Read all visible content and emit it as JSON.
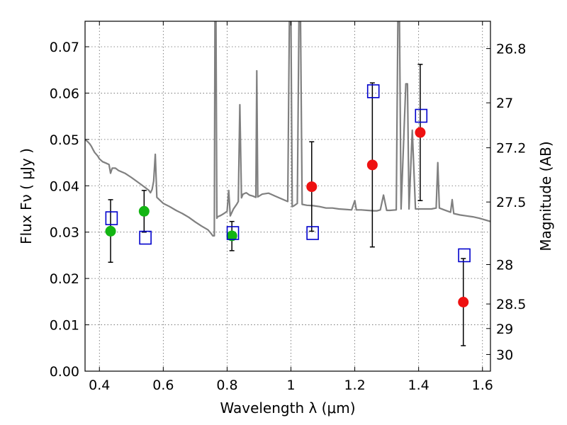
{
  "chart_data": {
    "type": "scatter",
    "title": "",
    "xlabel": "Wavelength  λ (μm)",
    "ylabel": "Flux  Fν  ( μJy )",
    "y2label": "Magnitude (AB)",
    "xlim": [
      0.355,
      1.625
    ],
    "ylim": [
      0.0,
      0.0755
    ],
    "grid": true,
    "x_ticks": [
      0.4,
      0.6,
      0.8,
      1.0,
      1.2,
      1.4,
      1.6
    ],
    "x_tick_labels": [
      "0.4",
      "0.6",
      "0.8",
      "1",
      "1.2",
      "1.4",
      "1.6"
    ],
    "y_ticks": [
      0.0,
      0.01,
      0.02,
      0.03,
      0.04,
      0.05,
      0.06,
      0.07
    ],
    "y_tick_labels": [
      "0.00",
      "0.01",
      "0.02",
      "0.03",
      "0.04",
      "0.05",
      "0.06",
      "0.07"
    ],
    "y2_ticks": [
      {
        "label": "26.8",
        "flux": 0.0696
      },
      {
        "label": "27",
        "flux": 0.0579
      },
      {
        "label": "27.2",
        "flux": 0.0482
      },
      {
        "label": "27.5",
        "flux": 0.0365
      },
      {
        "label": "28",
        "flux": 0.023
      },
      {
        "label": "28.5",
        "flux": 0.0145
      },
      {
        "label": "29",
        "flux": 0.0092
      },
      {
        "label": "30",
        "flux": 0.0036
      }
    ],
    "colors": {
      "model": "#808080",
      "green": "#13b513",
      "red": "#ee1111",
      "square": "#0000cc",
      "errorbar": "#000000"
    },
    "series": [
      {
        "kind": "line",
        "points": [
          [
            0.355,
            0.05
          ],
          [
            0.36,
            0.0497
          ],
          [
            0.365,
            0.0494
          ],
          [
            0.37,
            0.049
          ],
          [
            0.375,
            0.0485
          ],
          [
            0.38,
            0.0478
          ],
          [
            0.385,
            0.0472
          ],
          [
            0.39,
            0.0468
          ],
          [
            0.395,
            0.0464
          ],
          [
            0.4,
            0.0458
          ],
          [
            0.41,
            0.0452
          ],
          [
            0.42,
            0.0449
          ],
          [
            0.43,
            0.0446
          ],
          [
            0.435,
            0.0427
          ],
          [
            0.44,
            0.0438
          ],
          [
            0.45,
            0.0438
          ],
          [
            0.46,
            0.0433
          ],
          [
            0.48,
            0.0427
          ],
          [
            0.5,
            0.0418
          ],
          [
            0.52,
            0.0408
          ],
          [
            0.54,
            0.0398
          ],
          [
            0.555,
            0.039
          ],
          [
            0.56,
            0.0385
          ],
          [
            0.565,
            0.0392
          ],
          [
            0.57,
            0.041
          ],
          [
            0.575,
            0.0468
          ],
          [
            0.58,
            0.0375
          ],
          [
            0.6,
            0.0362
          ],
          [
            0.62,
            0.0355
          ],
          [
            0.64,
            0.0347
          ],
          [
            0.66,
            0.034
          ],
          [
            0.68,
            0.0332
          ],
          [
            0.7,
            0.0322
          ],
          [
            0.72,
            0.0313
          ],
          [
            0.74,
            0.0305
          ],
          [
            0.75,
            0.0297
          ],
          [
            0.755,
            0.0292
          ],
          [
            0.76,
            0.0292
          ],
          [
            0.762,
            0.076
          ],
          [
            0.765,
            0.076
          ],
          [
            0.768,
            0.033
          ],
          [
            0.77,
            0.0333
          ],
          [
            0.78,
            0.0336
          ],
          [
            0.79,
            0.034
          ],
          [
            0.8,
            0.0345
          ],
          [
            0.805,
            0.039
          ],
          [
            0.81,
            0.0335
          ],
          [
            0.82,
            0.035
          ],
          [
            0.83,
            0.036
          ],
          [
            0.835,
            0.0366
          ],
          [
            0.84,
            0.0575
          ],
          [
            0.845,
            0.0374
          ],
          [
            0.85,
            0.0382
          ],
          [
            0.86,
            0.0385
          ],
          [
            0.87,
            0.038
          ],
          [
            0.88,
            0.0378
          ],
          [
            0.89,
            0.0375
          ],
          [
            0.893,
            0.0648
          ],
          [
            0.896,
            0.0376
          ],
          [
            0.91,
            0.0382
          ],
          [
            0.93,
            0.0384
          ],
          [
            0.95,
            0.0378
          ],
          [
            0.97,
            0.0372
          ],
          [
            0.99,
            0.0366
          ],
          [
            0.995,
            0.076
          ],
          [
            1.0,
            0.076
          ],
          [
            1.004,
            0.0355
          ],
          [
            1.01,
            0.0357
          ],
          [
            1.02,
            0.0362
          ],
          [
            1.025,
            0.076
          ],
          [
            1.03,
            0.076
          ],
          [
            1.035,
            0.036
          ],
          [
            1.05,
            0.0358
          ],
          [
            1.07,
            0.0357
          ],
          [
            1.09,
            0.0355
          ],
          [
            1.11,
            0.0352
          ],
          [
            1.13,
            0.0352
          ],
          [
            1.15,
            0.035
          ],
          [
            1.17,
            0.0349
          ],
          [
            1.19,
            0.0348
          ],
          [
            1.2,
            0.0368
          ],
          [
            1.205,
            0.0348
          ],
          [
            1.22,
            0.0348
          ],
          [
            1.24,
            0.0347
          ],
          [
            1.26,
            0.0346
          ],
          [
            1.27,
            0.0346
          ],
          [
            1.28,
            0.0348
          ],
          [
            1.29,
            0.038
          ],
          [
            1.3,
            0.0347
          ],
          [
            1.31,
            0.0347
          ],
          [
            1.33,
            0.0348
          ],
          [
            1.335,
            0.076
          ],
          [
            1.34,
            0.076
          ],
          [
            1.345,
            0.035
          ],
          [
            1.36,
            0.062
          ],
          [
            1.365,
            0.062
          ],
          [
            1.37,
            0.035
          ],
          [
            1.38,
            0.052
          ],
          [
            1.39,
            0.035
          ],
          [
            1.4,
            0.035
          ],
          [
            1.42,
            0.035
          ],
          [
            1.44,
            0.035
          ],
          [
            1.455,
            0.0352
          ],
          [
            1.46,
            0.045
          ],
          [
            1.465,
            0.0352
          ],
          [
            1.48,
            0.0348
          ],
          [
            1.5,
            0.0343
          ],
          [
            1.505,
            0.037
          ],
          [
            1.51,
            0.034
          ],
          [
            1.53,
            0.0337
          ],
          [
            1.55,
            0.0335
          ],
          [
            1.57,
            0.0333
          ],
          [
            1.59,
            0.033
          ],
          [
            1.61,
            0.0326
          ],
          [
            1.625,
            0.0323
          ]
        ]
      },
      {
        "kind": "points-circle-green",
        "points": [
          {
            "x": 0.435,
            "y": 0.0302,
            "err_lo": 0.0235,
            "err_hi": 0.037
          },
          {
            "x": 0.54,
            "y": 0.0345,
            "err_lo": 0.03,
            "err_hi": 0.039
          },
          {
            "x": 0.815,
            "y": 0.0292,
            "err_lo": 0.026,
            "err_hi": 0.0323
          }
        ]
      },
      {
        "kind": "points-circle-red",
        "points": [
          {
            "x": 1.065,
            "y": 0.0398,
            "err_lo": 0.0302,
            "err_hi": 0.0495
          },
          {
            "x": 1.255,
            "y": 0.0445,
            "err_lo": 0.0268,
            "err_hi": 0.0622
          },
          {
            "x": 1.405,
            "y": 0.0515,
            "err_lo": 0.0368,
            "err_hi": 0.0662
          },
          {
            "x": 1.54,
            "y": 0.0149,
            "err_lo": 0.0055,
            "err_hi": 0.0243
          }
        ]
      },
      {
        "kind": "points-square",
        "points": [
          {
            "x": 0.438,
            "y": 0.033
          },
          {
            "x": 0.544,
            "y": 0.0288
          },
          {
            "x": 0.818,
            "y": 0.0298
          },
          {
            "x": 1.068,
            "y": 0.0298
          },
          {
            "x": 1.258,
            "y": 0.0604
          },
          {
            "x": 1.408,
            "y": 0.0551
          },
          {
            "x": 1.543,
            "y": 0.025
          }
        ]
      }
    ]
  }
}
